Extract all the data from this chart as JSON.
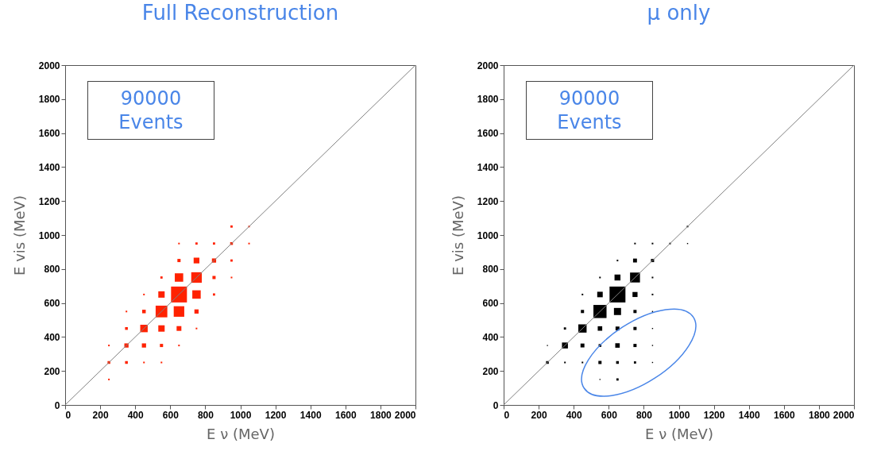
{
  "chart_data": [
    {
      "type": "bubble",
      "title": "Full Reconstruction",
      "xlabel": "E ν (MeV)",
      "ylabel": "E vis (MeV)",
      "annotations": [
        "90000",
        "Events"
      ],
      "xlim": [
        0,
        2000
      ],
      "ylim": [
        0,
        2000
      ],
      "xticks": [
        0,
        200,
        400,
        600,
        800,
        1000,
        1200,
        1400,
        1600,
        1800,
        2000
      ],
      "yticks": [
        0,
        200,
        400,
        600,
        800,
        1000,
        1200,
        1400,
        1600,
        1800,
        2000
      ],
      "series": [
        {
          "marker": "square",
          "color": "#ff2200",
          "x": [
            950,
            1050,
            650,
            750,
            850,
            950,
            1050,
            650,
            750,
            850,
            950,
            550,
            650,
            750,
            850,
            950,
            450,
            550,
            650,
            750,
            850,
            350,
            450,
            550,
            650,
            750,
            350,
            450,
            550,
            650,
            750,
            250,
            350,
            450,
            550,
            650,
            250,
            350,
            450,
            550,
            250
          ],
          "values": [
            1050,
            1050,
            950,
            950,
            950,
            950,
            950,
            850,
            850,
            850,
            850,
            750,
            750,
            750,
            750,
            750,
            650,
            650,
            650,
            650,
            650,
            550,
            550,
            550,
            550,
            550,
            450,
            450,
            450,
            450,
            450,
            350,
            350,
            350,
            350,
            350,
            250,
            250,
            250,
            250,
            150
          ],
          "sizes": [
            0.02,
            0.01,
            0.01,
            0.02,
            0.02,
            0.03,
            0.01,
            0.04,
            0.13,
            0.07,
            0.02,
            0.02,
            0.28,
            0.44,
            0.04,
            0.01,
            0.01,
            0.16,
            1,
            0.28,
            0.02,
            0.01,
            0.05,
            0.54,
            0.44,
            0.07,
            0.03,
            0.22,
            0.16,
            0.09,
            0.01,
            0.01,
            0.07,
            0.07,
            0.04,
            0.01,
            0.03,
            0.03,
            0.01,
            0.01,
            0.01
          ]
        },
        {
          "type": "line",
          "color": "#808080",
          "x": [
            0,
            2000
          ],
          "values": [
            0,
            2000
          ]
        }
      ]
    },
    {
      "type": "bubble",
      "title": "μ only",
      "xlabel": "E ν (MeV)",
      "ylabel": "E vis (MeV)",
      "annotations": [
        "90000",
        "Events"
      ],
      "xlim": [
        0,
        2000
      ],
      "ylim": [
        0,
        2000
      ],
      "xticks": [
        0,
        200,
        400,
        600,
        800,
        1000,
        1200,
        1400,
        1600,
        1800,
        2000
      ],
      "yticks": [
        0,
        200,
        400,
        600,
        800,
        1000,
        1200,
        1400,
        1600,
        1800,
        2000
      ],
      "series": [
        {
          "marker": "square",
          "color": "#000000",
          "x": [
            1050,
            750,
            850,
            950,
            1050,
            650,
            750,
            850,
            550,
            650,
            750,
            850,
            450,
            550,
            650,
            750,
            850,
            450,
            550,
            650,
            750,
            850,
            350,
            450,
            550,
            650,
            750,
            850,
            250,
            350,
            450,
            550,
            650,
            750,
            850,
            250,
            350,
            450,
            550,
            650,
            750,
            850,
            550,
            650
          ],
          "values": [
            1050,
            950,
            950,
            950,
            950,
            850,
            850,
            850,
            750,
            750,
            750,
            750,
            650,
            650,
            650,
            650,
            650,
            550,
            550,
            550,
            550,
            550,
            450,
            450,
            450,
            450,
            450,
            450,
            350,
            350,
            350,
            350,
            350,
            350,
            350,
            250,
            250,
            250,
            250,
            250,
            250,
            250,
            150,
            150
          ],
          "sizes": [
            0.01,
            0.01,
            0.01,
            0.01,
            0.005,
            0.01,
            0.06,
            0.04,
            0.01,
            0.14,
            0.39,
            0.01,
            0.01,
            0.12,
            1,
            0.1,
            0.01,
            0.04,
            0.68,
            0.2,
            0.04,
            0.005,
            0.02,
            0.27,
            0.08,
            0.06,
            0.04,
            0.005,
            0.005,
            0.14,
            0.06,
            0.03,
            0.08,
            0.04,
            0.005,
            0.03,
            0.01,
            0.01,
            0.04,
            0.03,
            0.02,
            0.005,
            0.005,
            0.02
          ]
        },
        {
          "type": "line",
          "color": "#808080",
          "x": [
            0,
            2000
          ],
          "values": [
            0,
            2000
          ]
        }
      ]
    }
  ]
}
